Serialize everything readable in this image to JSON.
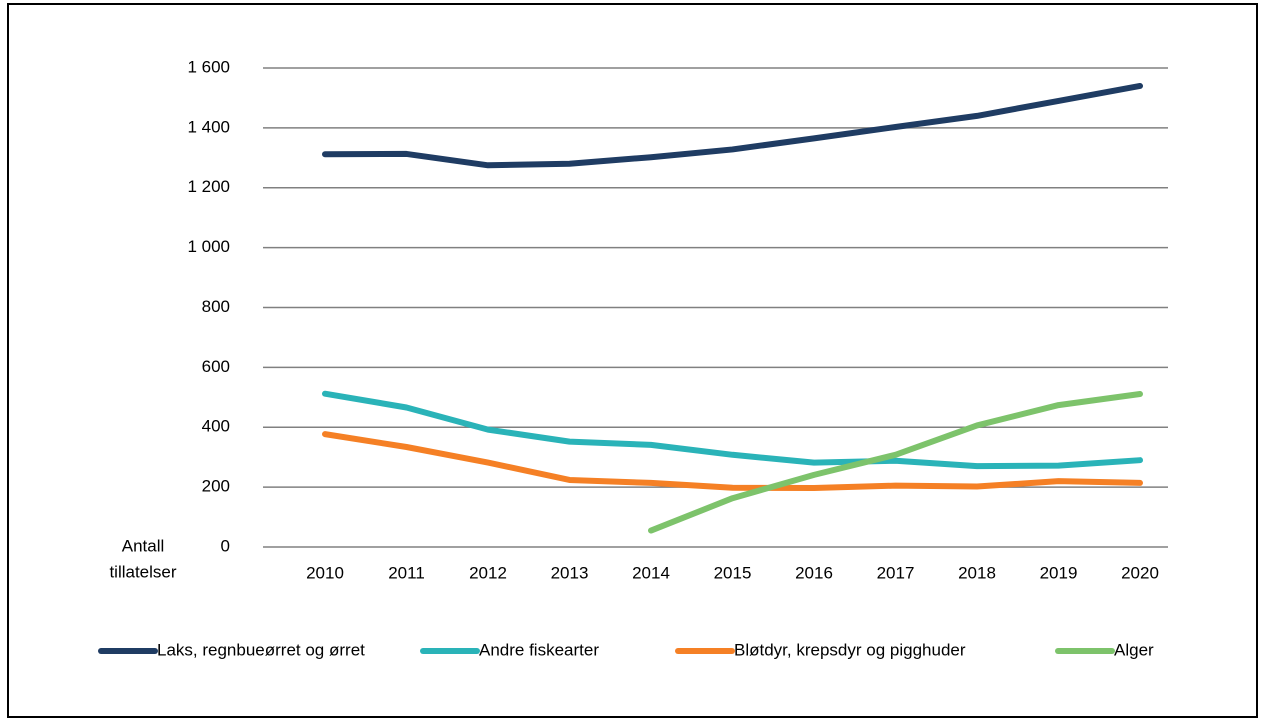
{
  "chart_data": {
    "type": "line",
    "y_axis_label": [
      "Antall",
      "tillatelser"
    ],
    "categories": [
      "2010",
      "2011",
      "2012",
      "2013",
      "2014",
      "2015",
      "2016",
      "2017",
      "2018",
      "2019",
      "2020"
    ],
    "series": [
      {
        "name": "Laks, regnbueørret og ørret",
        "color": "#1f3c63",
        "values": [
          1312,
          1313,
          1275,
          1280,
          1302,
          1328,
          1365,
          1403,
          1440,
          1490,
          1540
        ]
      },
      {
        "name": "Andre fiskearter",
        "color": "#2ab3b8",
        "values": [
          512,
          466,
          392,
          352,
          341,
          308,
          282,
          288,
          270,
          272,
          290
        ]
      },
      {
        "name": "Bløtdyr, krepsdyr og pigghuder",
        "color": "#f58025",
        "values": [
          377,
          334,
          282,
          224,
          214,
          198,
          197,
          205,
          202,
          220,
          214
        ]
      },
      {
        "name": "Alger",
        "color": "#7dc36b",
        "values": [
          null,
          null,
          null,
          null,
          55,
          163,
          241,
          308,
          406,
          474,
          511
        ]
      }
    ],
    "ylim": [
      0,
      1600
    ],
    "yticks": [
      0,
      200,
      400,
      600,
      800,
      {
        "value": 1000,
        "label": "1 000"
      },
      {
        "value": 1200,
        "label": "1 200"
      },
      {
        "value": 1400,
        "label": "1 400"
      },
      {
        "value": 1600,
        "label": "1 600"
      }
    ],
    "grid": true,
    "legend": "bottom"
  }
}
